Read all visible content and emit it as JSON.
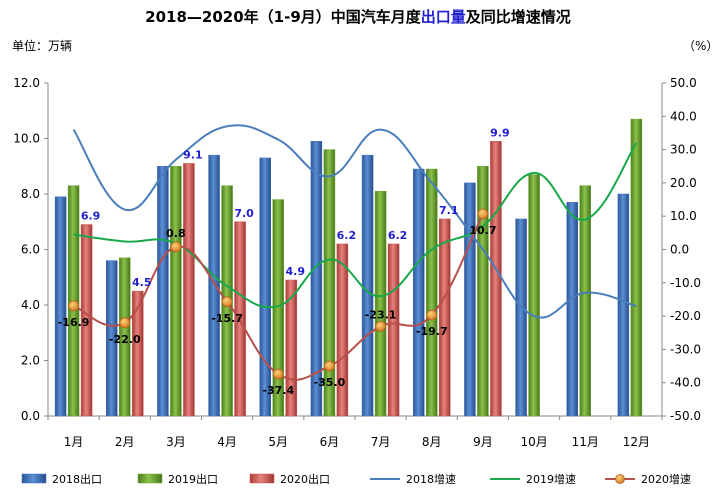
{
  "chart_data": {
    "type": "bar",
    "title_parts": [
      {
        "text": "2018—2020年（1-9月）中国汽车月度",
        "highlight": false
      },
      {
        "text": "出口量",
        "highlight": true
      },
      {
        "text": "及同比增速情况",
        "highlight": false
      }
    ],
    "left_unit": "单位：万辆",
    "right_unit": "（%）",
    "categories": [
      "1月",
      "2月",
      "3月",
      "4月",
      "5月",
      "6月",
      "7月",
      "8月",
      "9月",
      "10月",
      "11月",
      "12月"
    ],
    "ylim_left": [
      0,
      12
    ],
    "ylim_right": [
      -50,
      50
    ],
    "left_ticks": [
      "0.0",
      "2.0",
      "4.0",
      "6.0",
      "8.0",
      "10.0",
      "12.0"
    ],
    "right_ticks": [
      "-50.0",
      "-40.0",
      "-30.0",
      "-20.0",
      "-10.0",
      "0.0",
      "10.0",
      "20.0",
      "30.0",
      "40.0",
      "50.0"
    ],
    "bar_series": [
      {
        "name": "2018出口",
        "color": "#3f6fb8",
        "values": [
          7.9,
          5.6,
          9.0,
          9.4,
          9.3,
          9.9,
          9.4,
          8.9,
          8.4,
          7.1,
          7.7,
          8.0
        ]
      },
      {
        "name": "2019出口",
        "color": "#6fa632",
        "values": [
          8.3,
          5.7,
          9.0,
          8.3,
          7.8,
          9.6,
          8.1,
          8.9,
          9.0,
          8.7,
          8.3,
          10.7
        ]
      },
      {
        "name": "2020出口",
        "color": "#c9524d",
        "values": [
          6.9,
          4.5,
          9.1,
          7.0,
          4.9,
          6.2,
          6.2,
          7.1,
          9.9
        ],
        "labels": [
          "6.9",
          "4.5",
          "9.1",
          "7.0",
          "4.9",
          "6.2",
          "6.2",
          "7.1",
          "9.9"
        ]
      }
    ],
    "line_series": [
      {
        "name": "2018增速",
        "color": "#4a7ebb",
        "values": [
          36.0,
          12.0,
          27.0,
          37.0,
          33.0,
          22.0,
          36.0,
          20.0,
          0.0,
          -20.0,
          -13.0,
          -17.0
        ]
      },
      {
        "name": "2019增速",
        "color": "#19a84a",
        "values": [
          4.5,
          2.4,
          1.8,
          -11.0,
          -17.0,
          -3.0,
          -14.0,
          0.0,
          7.0,
          23.0,
          9.0,
          32.0
        ]
      },
      {
        "name": "2020增速",
        "color": "#b8504b",
        "marker": true,
        "values": [
          -16.9,
          -22.0,
          0.8,
          -15.7,
          -37.4,
          -35.0,
          -23.1,
          -19.7,
          10.7
        ],
        "labels": [
          "-16.9",
          "-22.0",
          "0.8",
          "-15.7",
          "-37.4",
          "-35.0",
          "-23.1",
          "-19.7",
          "10.7"
        ]
      }
    ],
    "legend_position": "bottom",
    "grid": false
  }
}
